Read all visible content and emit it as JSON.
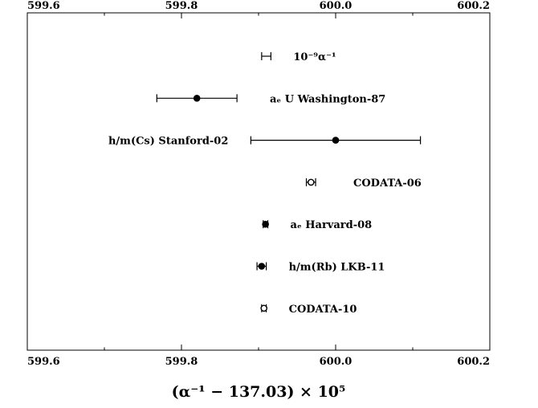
{
  "chart_data": {
    "type": "scatter",
    "title": "",
    "xlabel": "(α⁻¹ − 137.03) × 10⁵",
    "ylabel": "",
    "xlim": [
      599.6,
      600.2
    ],
    "xticks": [
      "599.6",
      "599.8",
      "600.0",
      "600.2"
    ],
    "grid": false,
    "points": [
      {
        "label": "10⁻⁹α⁻¹",
        "x": 599.91,
        "err_low": 0.006,
        "err_high": 0.006,
        "marker": "none",
        "label_side": "right"
      },
      {
        "label": "aₑ U Washington-87",
        "x": 599.82,
        "err_low": 0.052,
        "err_high": 0.052,
        "marker": "filled",
        "label_side": "right"
      },
      {
        "label": "h/m(Cs) Stanford-02",
        "x": 600.0,
        "err_low": 0.11,
        "err_high": 0.11,
        "marker": "filled",
        "label_side": "left"
      },
      {
        "label": "CODATA-06",
        "x": 599.968,
        "err_low": 0.006,
        "err_high": 0.006,
        "marker": "open",
        "label_side": "right"
      },
      {
        "label": "aₑ Harvard-08",
        "x": 599.909,
        "err_low": 0.003,
        "err_high": 0.003,
        "marker": "filled",
        "label_side": "right"
      },
      {
        "label": "h/m(Rb) LKB-11",
        "x": 599.904,
        "err_low": 0.006,
        "err_high": 0.006,
        "marker": "filled",
        "label_side": "right"
      },
      {
        "label": "CODATA-10",
        "x": 599.907,
        "err_low": 0.003,
        "err_high": 0.003,
        "marker": "open",
        "label_side": "right"
      }
    ]
  }
}
